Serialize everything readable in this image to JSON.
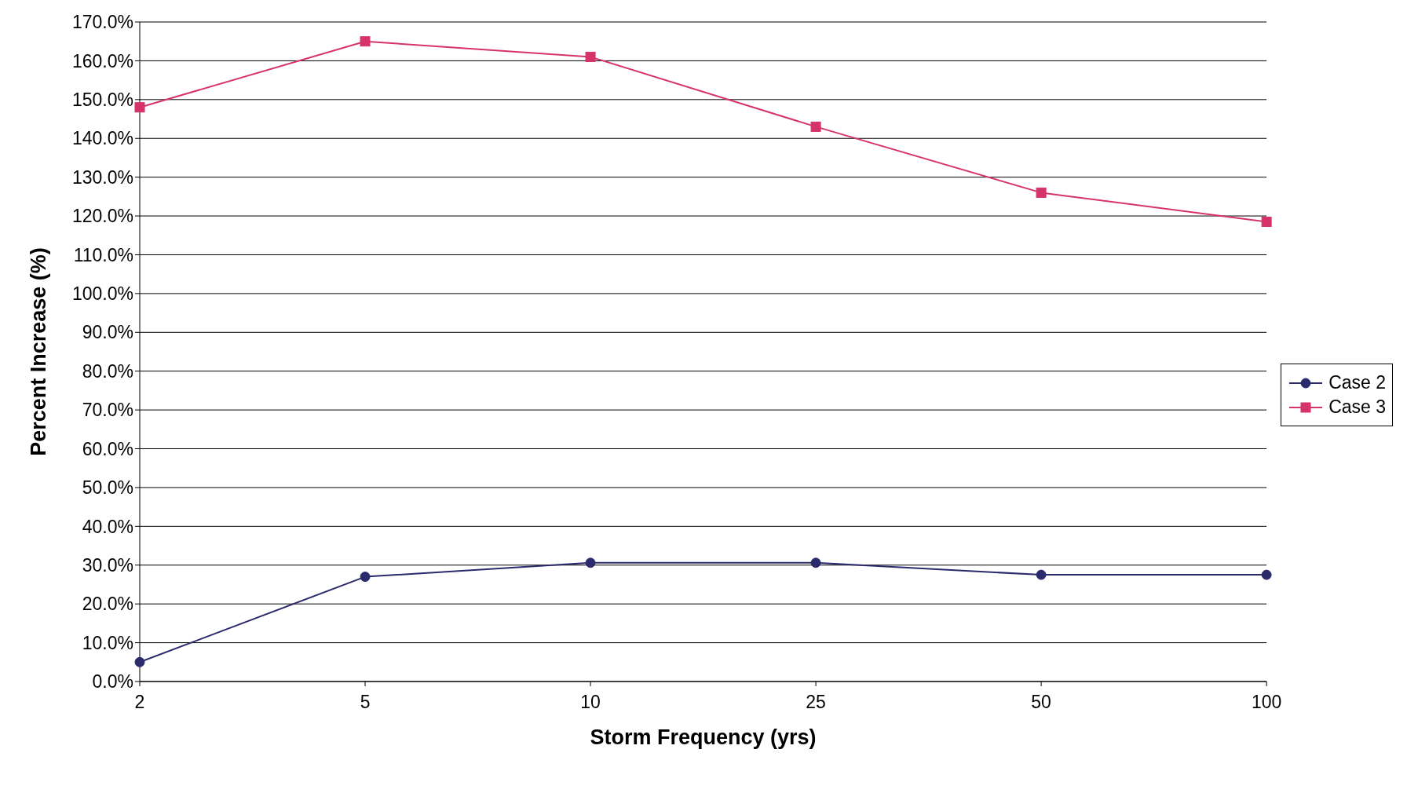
{
  "chart_data": {
    "type": "line",
    "xlabel": "Storm Frequency (yrs)",
    "ylabel": "Percent Increase (%)",
    "categories": [
      "2",
      "5",
      "10",
      "25",
      "50",
      "100"
    ],
    "series": [
      {
        "name": "Case 2",
        "color": "#2b2a6b",
        "marker": "circle",
        "values": [
          5,
          27,
          30.6,
          30.6,
          27.5,
          27.5
        ]
      },
      {
        "name": "Case 3",
        "color": "#d6336a",
        "marker": "square",
        "values": [
          148,
          165,
          161,
          143,
          126,
          118.5
        ]
      }
    ],
    "ylim": [
      0,
      170
    ],
    "yticks": [
      {
        "value": 0,
        "label": "0.0%"
      },
      {
        "value": 10,
        "label": "10.0%"
      },
      {
        "value": 20,
        "label": "20.0%"
      },
      {
        "value": 30,
        "label": "30.0%"
      },
      {
        "value": 40,
        "label": "40.0%"
      },
      {
        "value": 50,
        "label": "50.0%"
      },
      {
        "value": 60,
        "label": "60.0%"
      },
      {
        "value": 70,
        "label": "70.0%"
      },
      {
        "value": 80,
        "label": "80.0%"
      },
      {
        "value": 90,
        "label": "90.0%"
      },
      {
        "value": 100,
        "label": "100.0%"
      },
      {
        "value": 110,
        "label": "110.0%"
      },
      {
        "value": 120,
        "label": "120.0%"
      },
      {
        "value": 130,
        "label": "130.0%"
      },
      {
        "value": 140,
        "label": "140.0%"
      },
      {
        "value": 150,
        "label": "150.0%"
      },
      {
        "value": 160,
        "label": "160.0%"
      },
      {
        "value": 170,
        "label": "170.0%"
      }
    ],
    "grid": "y",
    "legend": "right"
  }
}
